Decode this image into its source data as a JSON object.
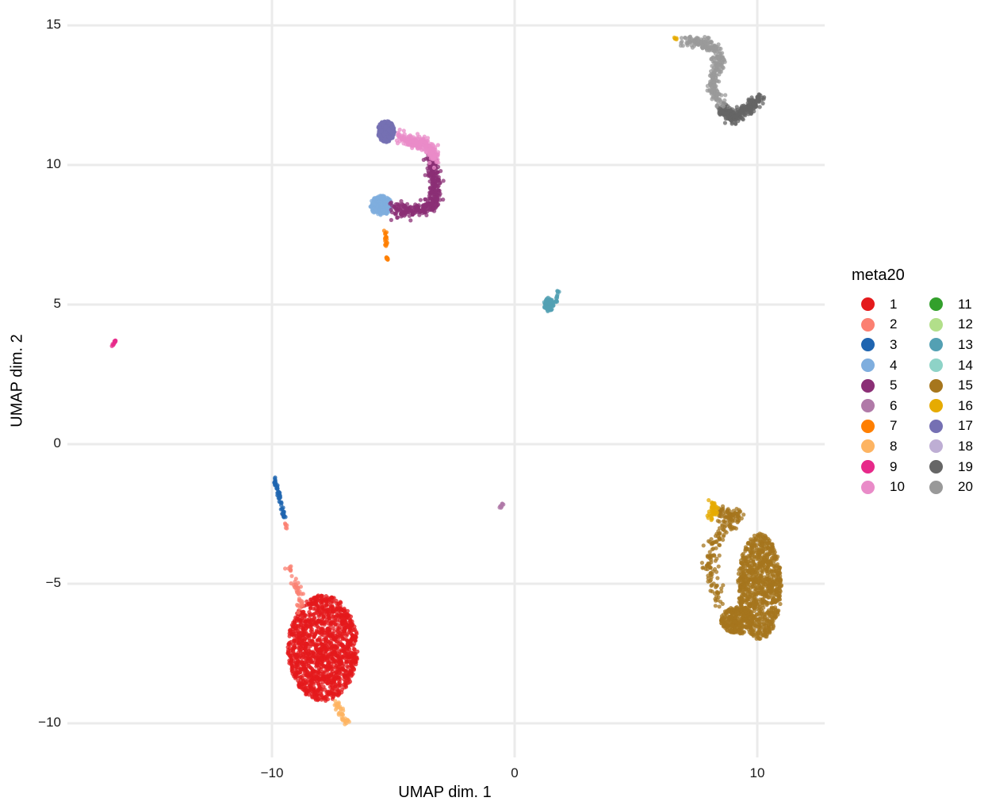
{
  "chart_data": {
    "type": "scatter",
    "title": "",
    "xlabel": "UMAP dim. 1",
    "ylabel": "UMAP dim. 2",
    "xlim": [
      -16.4,
      12.8
    ],
    "ylim": [
      -11.2,
      15.7
    ],
    "xticks": [
      -10,
      0,
      10
    ],
    "xtick_labels": [
      "−10",
      "0",
      "10"
    ],
    "yticks": [
      15,
      10,
      5,
      0,
      -5,
      -10
    ],
    "ytick_labels": [
      "15",
      "10",
      "5",
      "0",
      "−5",
      "−10"
    ],
    "grid": true,
    "legend_position": "right",
    "legend_title": "meta20",
    "legend": [
      {
        "label": "1",
        "color": "#E41A1C"
      },
      {
        "label": "2",
        "color": "#FB8072"
      },
      {
        "label": "3",
        "color": "#1F65B0"
      },
      {
        "label": "4",
        "color": "#7FAEDE"
      },
      {
        "label": "5",
        "color": "#8B2F76"
      },
      {
        "label": "6",
        "color": "#B07AA8"
      },
      {
        "label": "7",
        "color": "#FF7F00"
      },
      {
        "label": "8",
        "color": "#FDB462"
      },
      {
        "label": "9",
        "color": "#E7298A"
      },
      {
        "label": "10",
        "color": "#E98BC8"
      },
      {
        "label": "11",
        "color": "#33A02C"
      },
      {
        "label": "12",
        "color": "#B2DF8A"
      },
      {
        "label": "13",
        "color": "#53A0B3"
      },
      {
        "label": "14",
        "color": "#8ED3C7"
      },
      {
        "label": "15",
        "color": "#A6761D"
      },
      {
        "label": "16",
        "color": "#E6AB02"
      },
      {
        "label": "17",
        "color": "#7570B3"
      },
      {
        "label": "18",
        "color": "#BEAED4"
      },
      {
        "label": "19",
        "color": "#666666"
      },
      {
        "label": "20",
        "color": "#999999"
      }
    ],
    "clusters": [
      {
        "label": "1",
        "shape": "blob",
        "cx": -7.9,
        "cy": -7.3,
        "rx": 1.45,
        "ry": 1.9,
        "n": 1400
      },
      {
        "label": "2",
        "shape": "line",
        "points": [
          [
            -9.3,
            -4.3
          ],
          [
            -8.9,
            -5.3
          ],
          [
            -8.8,
            -5.9
          ]
        ],
        "n": 45,
        "w": 0.15
      },
      {
        "label": "2",
        "shape": "line",
        "points": [
          [
            -9.6,
            -2.4
          ],
          [
            -9.4,
            -3.0
          ]
        ],
        "n": 10,
        "w": 0.05
      },
      {
        "label": "3",
        "shape": "line",
        "points": [
          [
            -9.9,
            -1.2
          ],
          [
            -9.7,
            -1.9
          ],
          [
            -9.5,
            -2.6
          ]
        ],
        "n": 60,
        "w": 0.06
      },
      {
        "label": "4",
        "shape": "blob",
        "cx": -5.5,
        "cy": 8.55,
        "rx": 0.45,
        "ry": 0.35,
        "n": 220
      },
      {
        "label": "5",
        "shape": "line",
        "points": [
          [
            -5.0,
            8.4
          ],
          [
            -4.0,
            8.35
          ],
          [
            -3.3,
            8.6
          ],
          [
            -3.3,
            9.4
          ],
          [
            -3.5,
            10.3
          ]
        ],
        "n": 380,
        "w": 0.25
      },
      {
        "label": "6",
        "shape": "line",
        "points": [
          [
            -0.6,
            -2.3
          ],
          [
            -0.5,
            -2.15
          ]
        ],
        "n": 12,
        "w": 0.04
      },
      {
        "label": "7",
        "shape": "line",
        "points": [
          [
            -5.3,
            7.6
          ],
          [
            -5.3,
            7.1
          ]
        ],
        "n": 20,
        "w": 0.06
      },
      {
        "label": "7",
        "shape": "line",
        "points": [
          [
            -5.3,
            6.7
          ],
          [
            -5.2,
            6.6
          ]
        ],
        "n": 8,
        "w": 0.04
      },
      {
        "label": "8",
        "shape": "line",
        "points": [
          [
            -7.4,
            -9.2
          ],
          [
            -7.1,
            -9.7
          ],
          [
            -6.9,
            -10.0
          ]
        ],
        "n": 40,
        "w": 0.12
      },
      {
        "label": "9",
        "shape": "line",
        "points": [
          [
            -16.6,
            3.55
          ],
          [
            -16.45,
            3.7
          ]
        ],
        "n": 12,
        "w": 0.04
      },
      {
        "label": "10",
        "shape": "line",
        "points": [
          [
            -4.8,
            11.0
          ],
          [
            -4.0,
            10.8
          ],
          [
            -3.5,
            10.7
          ],
          [
            -3.3,
            10.2
          ]
        ],
        "n": 240,
        "w": 0.22
      },
      {
        "label": "13",
        "shape": "blob",
        "cx": 1.4,
        "cy": 5.0,
        "rx": 0.2,
        "ry": 0.25,
        "n": 70
      },
      {
        "label": "13",
        "shape": "line",
        "points": [
          [
            1.7,
            5.1
          ],
          [
            1.8,
            5.5
          ]
        ],
        "n": 15,
        "w": 0.05
      },
      {
        "label": "15",
        "shape": "blob",
        "cx": 10.1,
        "cy": -5.1,
        "rx": 0.9,
        "ry": 1.9,
        "n": 900
      },
      {
        "label": "15",
        "shape": "line",
        "points": [
          [
            8.4,
            -2.5
          ],
          [
            9.2,
            -2.6
          ],
          [
            8.3,
            -3.3
          ],
          [
            8.0,
            -4.5
          ],
          [
            8.5,
            -5.7
          ]
        ],
        "n": 200,
        "w": 0.3
      },
      {
        "label": "15",
        "shape": "blob",
        "cx": 9.2,
        "cy": -6.3,
        "rx": 0.7,
        "ry": 0.5,
        "n": 260
      },
      {
        "label": "16",
        "shape": "line",
        "points": [
          [
            8.1,
            -2.0
          ],
          [
            8.3,
            -2.4
          ],
          [
            8.0,
            -2.6
          ]
        ],
        "n": 45,
        "w": 0.12
      },
      {
        "label": "16",
        "shape": "line",
        "points": [
          [
            6.5,
            14.55
          ],
          [
            6.7,
            14.5
          ]
        ],
        "n": 5,
        "w": 0.04
      },
      {
        "label": "17",
        "shape": "blob",
        "cx": -5.3,
        "cy": 11.2,
        "rx": 0.35,
        "ry": 0.38,
        "n": 300
      },
      {
        "label": "19",
        "shape": "line",
        "points": [
          [
            8.5,
            12.0
          ],
          [
            9.0,
            11.7
          ],
          [
            9.6,
            12.0
          ],
          [
            10.1,
            12.4
          ]
        ],
        "n": 300,
        "w": 0.22
      },
      {
        "label": "20",
        "shape": "line",
        "points": [
          [
            7.0,
            14.4
          ],
          [
            7.7,
            14.4
          ],
          [
            8.2,
            14.2
          ],
          [
            8.5,
            13.7
          ],
          [
            8.2,
            13.2
          ],
          [
            8.2,
            12.7
          ],
          [
            8.5,
            12.2
          ]
        ],
        "n": 280,
        "w": 0.22
      }
    ]
  }
}
